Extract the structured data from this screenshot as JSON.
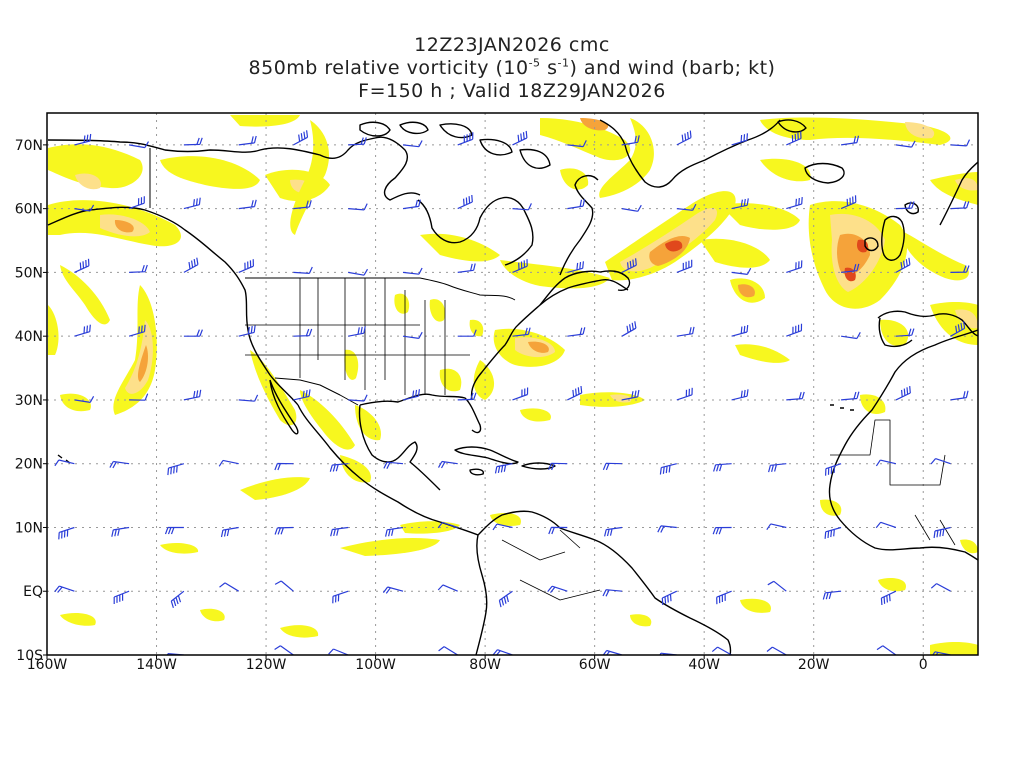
{
  "title": {
    "line1": "12Z23JAN2026 cmc",
    "line2_prefix": "850mb relative vorticity (10",
    "line2_exp1": "-5",
    "line2_mid": " s",
    "line2_exp2": "-1",
    "line2_suffix": ") and wind (barb; kt)",
    "line3": "F=150 h ; Valid 18Z29JAN2026"
  },
  "axes": {
    "lon_labels": [
      "160W",
      "140W",
      "120W",
      "100W",
      "80W",
      "60W",
      "40W",
      "20W",
      "0"
    ],
    "lat_labels": [
      "70N",
      "60N",
      "50N",
      "40N",
      "30N",
      "20N",
      "10N",
      "EQ",
      "10S"
    ]
  },
  "colors": {
    "shade_low": "#f7f71f",
    "shade_mid": "#fde08a",
    "shade_high": "#f5a33a",
    "shade_max": "#e0481c",
    "barb": "#2a3dd8",
    "coast": "#000000",
    "grid": "#999999"
  },
  "map": {
    "projection": "cylindrical equidistant",
    "lon_range": [
      -160,
      10
    ],
    "lat_range": [
      -10,
      75
    ],
    "grid": "dotted"
  }
}
